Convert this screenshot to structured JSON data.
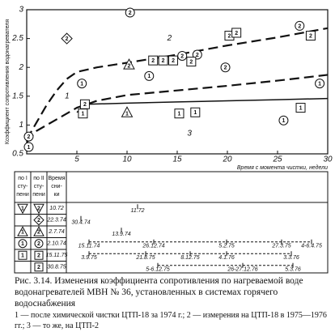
{
  "chart_data": {
    "type": "line",
    "x_label": "Время с момента чистки, недели",
    "y_label": "Коэффициент сопротивления водонагревателя",
    "xlim": [
      0,
      30
    ],
    "xticks": [
      5,
      10,
      15,
      20,
      25,
      30
    ],
    "ylim": [
      0.5,
      3
    ],
    "yticks": [
      0.5,
      1,
      1.5,
      2,
      2.5,
      3
    ],
    "grid": false,
    "series": [
      {
        "name": "2",
        "color": "#111",
        "dashed": true,
        "x": [
          0,
          1,
          2,
          3,
          4,
          5,
          7,
          10,
          15,
          20,
          25,
          30
        ],
        "values": [
          0.75,
          1.05,
          1.35,
          1.6,
          1.8,
          1.92,
          2.0,
          2.08,
          2.22,
          2.38,
          2.52,
          2.68
        ]
      },
      {
        "name": "1",
        "color": "#111",
        "dashed": true,
        "x": [
          0,
          1,
          2,
          3,
          4,
          5,
          7,
          10,
          15,
          20,
          25,
          30
        ],
        "values": [
          0.7,
          0.9,
          1.0,
          1.1,
          1.2,
          1.3,
          1.42,
          1.52,
          1.6,
          1.68,
          1.77,
          1.87
        ]
      },
      {
        "name": "3",
        "color": "#111",
        "dashed": false,
        "x": [
          5,
          6,
          10,
          15,
          20,
          25,
          30
        ],
        "values": [
          1.22,
          1.36,
          1.38,
          1.4,
          1.42,
          1.44,
          1.46
        ]
      }
    ],
    "markers": [
      {
        "x": 0.2,
        "y": 0.8,
        "shape": "circle",
        "label": "2"
      },
      {
        "x": 0.2,
        "y": 0.62,
        "shape": "circle",
        "label": "1"
      },
      {
        "x": 4,
        "y": 2.5,
        "shape": "diamond",
        "label": "2"
      },
      {
        "x": 10.3,
        "y": 2.95,
        "shape": "circle",
        "label": "2"
      },
      {
        "x": 5.5,
        "y": 1.72,
        "shape": "circle",
        "label": "1"
      },
      {
        "x": 5.8,
        "y": 1.36,
        "shape": "square",
        "label": "2"
      },
      {
        "x": 5.6,
        "y": 1.2,
        "shape": "square",
        "label": "1"
      },
      {
        "x": 10.2,
        "y": 2.05,
        "shape": "triangle",
        "label": "2"
      },
      {
        "x": 10,
        "y": 1.22,
        "shape": "triangle",
        "label": "1"
      },
      {
        "x": 12.2,
        "y": 1.85,
        "shape": "circle",
        "label": "1"
      },
      {
        "x": 12.6,
        "y": 2.12,
        "shape": "square",
        "label": "2"
      },
      {
        "x": 13.6,
        "y": 2.12,
        "shape": "square",
        "label": "2"
      },
      {
        "x": 14.6,
        "y": 2.12,
        "shape": "square",
        "label": "2"
      },
      {
        "x": 15.5,
        "y": 2.2,
        "shape": "circle",
        "label": "2"
      },
      {
        "x": 17,
        "y": 2.22,
        "shape": "circle",
        "label": "2"
      },
      {
        "x": 16.4,
        "y": 2.1,
        "shape": "square",
        "label": "2"
      },
      {
        "x": 20.2,
        "y": 2.55,
        "shape": "square",
        "label": "2"
      },
      {
        "x": 20.9,
        "y": 2.6,
        "shape": "square",
        "label": "2"
      },
      {
        "x": 19.8,
        "y": 2.0,
        "shape": "circle",
        "label": "2"
      },
      {
        "x": 15.2,
        "y": 1.2,
        "shape": "square",
        "label": "1"
      },
      {
        "x": 16.8,
        "y": 1.22,
        "shape": "square",
        "label": "1"
      },
      {
        "x": 27.2,
        "y": 2.72,
        "shape": "circle",
        "label": "2"
      },
      {
        "x": 28.3,
        "y": 2.55,
        "shape": "square",
        "label": "2"
      },
      {
        "x": 29.2,
        "y": 1.72,
        "shape": "circle",
        "label": "1"
      },
      {
        "x": 27.3,
        "y": 1.3,
        "shape": "square",
        "label": "1"
      },
      {
        "x": 25.6,
        "y": 1.08,
        "shape": "circle",
        "label": "1"
      }
    ]
  },
  "table": {
    "headers": [
      [
        "по I",
        "сту-",
        "пени"
      ],
      [
        "по II",
        "сту-",
        "пени"
      ],
      [
        "Время",
        "сни-",
        "ки"
      ]
    ],
    "rows": [
      {
        "s1": {
          "shape": "tri-down",
          "label": "1"
        },
        "s2": {
          "shape": "tri-down",
          "label": "2"
        },
        "time": "10.72",
        "dates": [
          "11.72"
        ]
      },
      {
        "s1": null,
        "s2": {
          "shape": "diamond",
          "label": "2"
        },
        "time": "22.3.74",
        "dates": [
          "30.4.74"
        ]
      },
      {
        "s1": {
          "shape": "triangle",
          "label": "1"
        },
        "s2": {
          "shape": "triangle",
          "label": "2"
        },
        "time": "2.7.74",
        "dates": [
          "13.9.74"
        ]
      },
      {
        "s1": {
          "shape": "circle",
          "label": "1"
        },
        "s2": {
          "shape": "circle",
          "label": "2"
        },
        "time": "2.10.74",
        "dates": [
          "15.11.74",
          "26.12.74",
          "5.2.75",
          "27.3.75",
          "4-6.4.75"
        ]
      },
      {
        "s1": {
          "shape": "square",
          "label": "1"
        },
        "s2": {
          "shape": "square",
          "label": "2"
        },
        "time": "15.11.75",
        "dates": [
          "3.9.75",
          "21.8.75",
          "8.12.75",
          "4.1.76",
          "3.3.76"
        ]
      },
      {
        "s1": null,
        "s2": {
          "shape": "square",
          "label": "2"
        },
        "time": "30.8.75",
        "dates": [
          "5-6.12.75",
          "26-27.12.76",
          "5.3.76"
        ]
      }
    ]
  },
  "caption": {
    "title": "Рис. 3.14. Изменения коэффициента сопротивления по нагреваемой воде водонагревателей МВН № 36, установленных в системах горячего водоснабжения",
    "legend": "1 — после химической чистки ЦТП-18 за 1974 г.; 2 — измерения на ЦТП-18 в 1975—1976 гг.; 3 — то же, на ЦТП-2"
  }
}
